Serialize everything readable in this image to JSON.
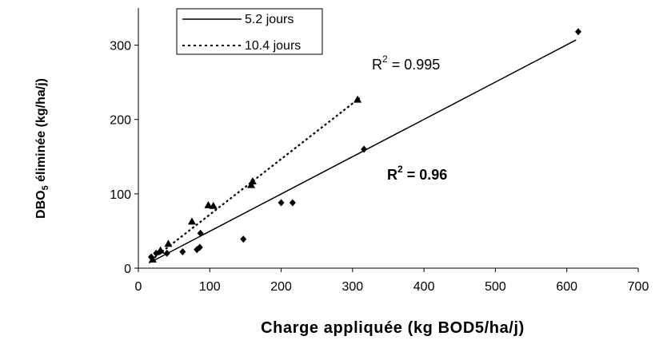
{
  "chart_data": {
    "type": "scatter",
    "title": "",
    "xlabel": "Charge appliquée (kg BOD5/ha/j)",
    "ylabel": {
      "prefix": "DBO",
      "subscript": "5",
      "suffix": " éliminée (kg/ha/j)"
    },
    "xlim": [
      0,
      700
    ],
    "ylim": [
      0,
      350
    ],
    "xticks": [
      0,
      100,
      200,
      300,
      400,
      500,
      600,
      700
    ],
    "yticks": [
      0,
      100,
      200,
      300
    ],
    "grid": false,
    "legend_position": "top-left",
    "series": [
      {
        "name": "5.2 jours",
        "marker": "diamond",
        "line_style": "solid",
        "points": [
          [
            18,
            15
          ],
          [
            25,
            20
          ],
          [
            31,
            23
          ],
          [
            40,
            20
          ],
          [
            62,
            22
          ],
          [
            82,
            25
          ],
          [
            86,
            28
          ],
          [
            87,
            47
          ],
          [
            147,
            39
          ],
          [
            200,
            88
          ],
          [
            216,
            88
          ],
          [
            316,
            160
          ],
          [
            616,
            318
          ]
        ],
        "trendline": [
          [
            15,
            7
          ],
          [
            613,
            307
          ]
        ],
        "r2": {
          "base": "R",
          "sup": "2",
          "value": " = 0.96"
        }
      },
      {
        "name": "10.4 jours",
        "marker": "triangle",
        "line_style": "dotted",
        "points": [
          [
            20,
            12
          ],
          [
            31,
            24
          ],
          [
            42,
            33
          ],
          [
            75,
            63
          ],
          [
            98,
            85
          ],
          [
            105,
            84
          ],
          [
            158,
            112
          ],
          [
            160,
            117
          ],
          [
            307,
            227
          ]
        ],
        "trendline": [
          [
            17,
            10
          ],
          [
            310,
            229
          ]
        ],
        "r2": {
          "base": "R",
          "sup": "2",
          "value": " = 0.995"
        }
      }
    ]
  }
}
